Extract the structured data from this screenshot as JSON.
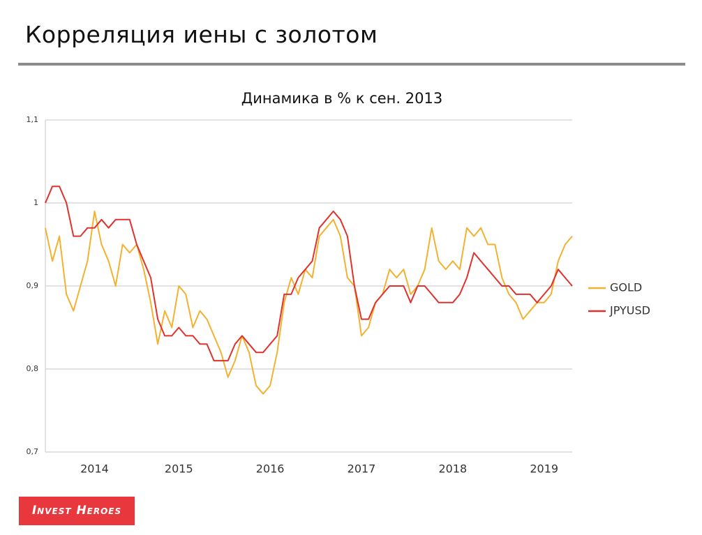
{
  "header": {
    "title": "Корреляция иены с золотом"
  },
  "logo": "Invest Heroes",
  "chart_data": {
    "type": "line",
    "title": "Динамика в % к сен. 2013",
    "categories": [
      null,
      null,
      null,
      null,
      null,
      null,
      null,
      "2014",
      null,
      null,
      null,
      null,
      null,
      null,
      null,
      null,
      null,
      null,
      null,
      "2015",
      null,
      null,
      null,
      null,
      null,
      null,
      null,
      null,
      null,
      null,
      null,
      null,
      "2016",
      null,
      null,
      null,
      null,
      null,
      null,
      null,
      null,
      null,
      null,
      null,
      null,
      "2017",
      null,
      null,
      null,
      null,
      null,
      null,
      null,
      null,
      null,
      null,
      null,
      null,
      "2018",
      null,
      null,
      null,
      null,
      null,
      null,
      null,
      null,
      null,
      null,
      null,
      null,
      "2019",
      null,
      null,
      null,
      null
    ],
    "series": [
      {
        "name": "GOLD",
        "color": "#f2b230",
        "values": [
          0.97,
          0.93,
          0.96,
          0.89,
          0.87,
          0.9,
          0.93,
          0.99,
          0.95,
          0.93,
          0.9,
          0.95,
          0.94,
          0.95,
          0.92,
          0.88,
          0.83,
          0.87,
          0.85,
          0.9,
          0.89,
          0.85,
          0.87,
          0.86,
          0.84,
          0.82,
          0.79,
          0.81,
          0.84,
          0.82,
          0.78,
          0.77,
          0.78,
          0.82,
          0.88,
          0.91,
          0.89,
          0.92,
          0.91,
          0.96,
          0.97,
          0.98,
          0.96,
          0.91,
          0.9,
          0.84,
          0.85,
          0.88,
          0.89,
          0.92,
          0.91,
          0.92,
          0.89,
          0.9,
          0.92,
          0.97,
          0.93,
          0.92,
          0.93,
          0.92,
          0.97,
          0.96,
          0.97,
          0.95,
          0.95,
          0.91,
          0.89,
          0.88,
          0.86,
          0.87,
          0.88,
          0.88,
          0.89,
          0.93,
          0.95,
          0.96
        ]
      },
      {
        "name": "JPYUSD",
        "color": "#e0322d",
        "values": [
          1.0,
          1.02,
          1.02,
          1.0,
          0.96,
          0.96,
          0.97,
          0.97,
          0.98,
          0.97,
          0.98,
          0.98,
          0.98,
          0.95,
          0.93,
          0.91,
          0.86,
          0.84,
          0.84,
          0.85,
          0.84,
          0.84,
          0.83,
          0.83,
          0.81,
          0.81,
          0.81,
          0.83,
          0.84,
          0.83,
          0.82,
          0.82,
          0.83,
          0.84,
          0.89,
          0.89,
          0.91,
          0.92,
          0.93,
          0.97,
          0.98,
          0.99,
          0.98,
          0.96,
          0.9,
          0.86,
          0.86,
          0.88,
          0.89,
          0.9,
          0.9,
          0.9,
          0.88,
          0.9,
          0.9,
          0.89,
          0.88,
          0.88,
          0.88,
          0.89,
          0.91,
          0.94,
          0.93,
          0.92,
          0.91,
          0.9,
          0.9,
          0.89,
          0.89,
          0.89,
          0.88,
          0.89,
          0.9,
          0.92,
          0.91,
          0.9
        ]
      }
    ],
    "ylim": [
      0.7,
      1.1
    ],
    "yticks": [
      {
        "value": 0.7,
        "label": "0,7"
      },
      {
        "value": 0.8,
        "label": "0,8"
      },
      {
        "value": 0.9,
        "label": "0,9"
      },
      1,
      {
        "value": 1.1,
        "label": "1,1"
      }
    ],
    "grid": true,
    "legend": "right"
  }
}
